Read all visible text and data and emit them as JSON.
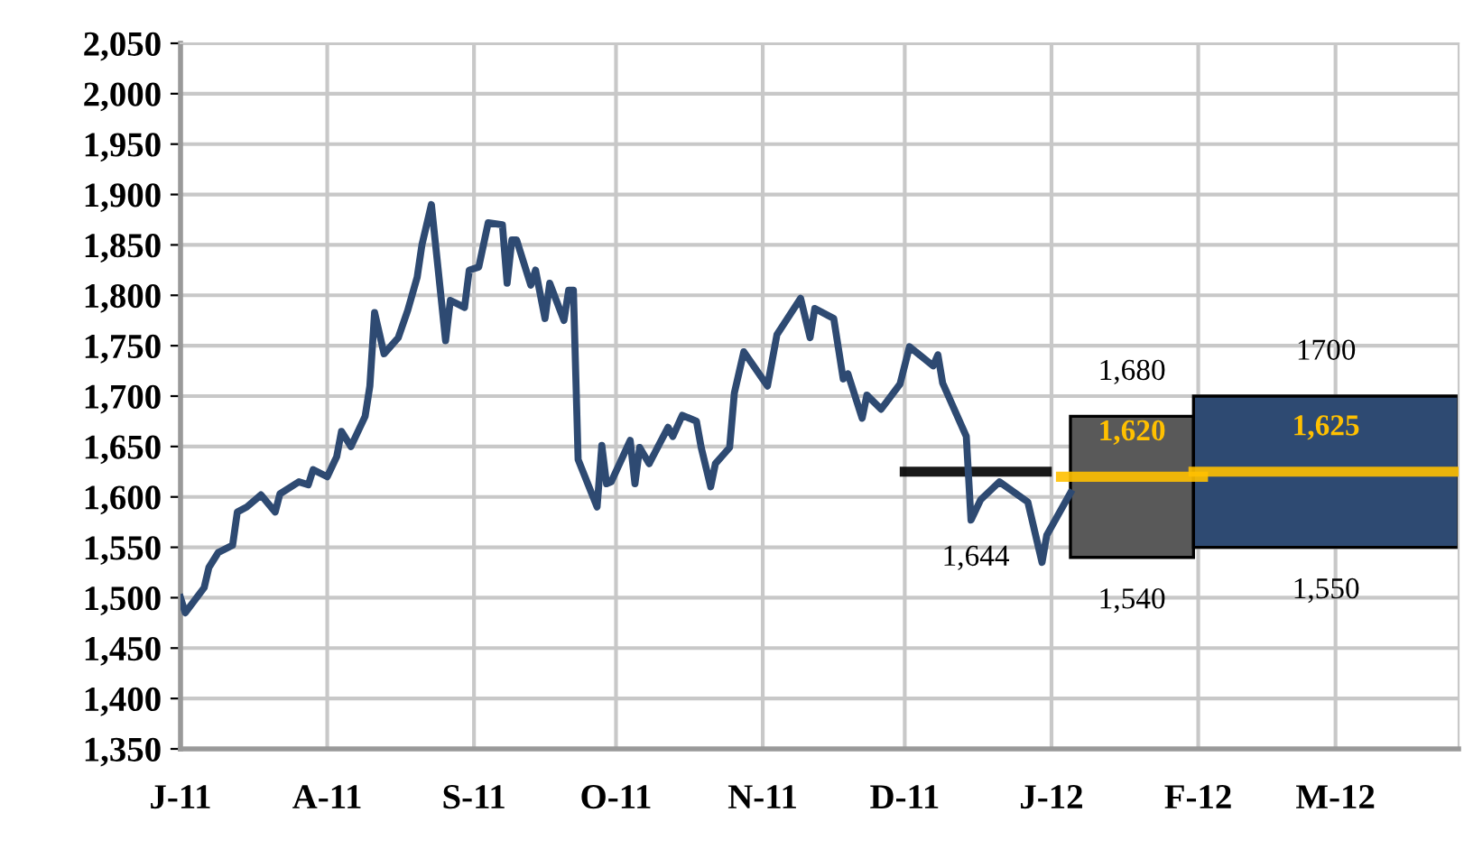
{
  "chart_data": {
    "type": "line",
    "xlim": [
      "2011-07-01",
      "2012-03-27"
    ],
    "ylim": [
      1350,
      2050
    ],
    "xticks": [
      {
        "value": "2011-07-01",
        "label": "J-11"
      },
      {
        "value": "2011-08-01",
        "label": "A-11"
      },
      {
        "value": "2011-09-01",
        "label": "S-11"
      },
      {
        "value": "2011-10-01",
        "label": "O-11"
      },
      {
        "value": "2011-11-01",
        "label": "N-11"
      },
      {
        "value": "2011-12-01",
        "label": "D-11"
      },
      {
        "value": "2012-01-01",
        "label": "J-12"
      },
      {
        "value": "2012-02-01",
        "label": "F-12"
      },
      {
        "value": "2012-03-01",
        "label": "M-12"
      }
    ],
    "yticks": [
      {
        "value": 1350,
        "label": "1,350"
      },
      {
        "value": 1400,
        "label": "1,400"
      },
      {
        "value": 1450,
        "label": "1,450"
      },
      {
        "value": 1500,
        "label": "1,500"
      },
      {
        "value": 1550,
        "label": "1,550"
      },
      {
        "value": 1600,
        "label": "1,600"
      },
      {
        "value": 1650,
        "label": "1,650"
      },
      {
        "value": 1700,
        "label": "1,700"
      },
      {
        "value": 1750,
        "label": "1,750"
      },
      {
        "value": 1800,
        "label": "1,800"
      },
      {
        "value": 1850,
        "label": "1,850"
      },
      {
        "value": 1900,
        "label": "1,900"
      },
      {
        "value": 1950,
        "label": "1,950"
      },
      {
        "value": 2000,
        "label": "2,000"
      },
      {
        "value": 2050,
        "label": "2,050"
      }
    ],
    "grid": true,
    "series": [
      {
        "type": "bar",
        "x": [
          "2012-01-18",
          "2012-02-28"
        ],
        "base": [
          1540,
          1550
        ],
        "values": [
          140,
          150
        ],
        "colors": [
          "#595959",
          "#2e4a72"
        ]
      },
      {
        "color": "#2e4a72",
        "x": [
          "2011-07-01",
          "2011-07-02",
          "2011-07-06",
          "2011-07-07",
          "2011-07-09",
          "2011-07-12",
          "2011-07-13",
          "2011-07-15",
          "2011-07-18",
          "2011-07-21",
          "2011-07-22",
          "2011-07-26",
          "2011-07-28",
          "2011-07-29",
          "2011-08-01",
          "2011-08-03",
          "2011-08-04",
          "2011-08-06",
          "2011-08-09",
          "2011-08-10",
          "2011-08-11",
          "2011-08-13",
          "2011-08-16",
          "2011-08-18",
          "2011-08-20",
          "2011-08-21",
          "2011-08-23",
          "2011-08-26",
          "2011-08-27",
          "2011-08-30",
          "2011-08-31",
          "2011-09-02",
          "2011-09-04",
          "2011-09-07",
          "2011-09-08",
          "2011-09-09",
          "2011-09-10",
          "2011-09-13",
          "2011-09-14",
          "2011-09-16",
          "2011-09-17",
          "2011-09-20",
          "2011-09-21",
          "2011-09-22",
          "2011-09-23",
          "2011-09-27",
          "2011-09-28",
          "2011-09-29",
          "2011-09-30",
          "2011-10-04",
          "2011-10-05",
          "2011-10-06",
          "2011-10-08",
          "2011-10-12",
          "2011-10-13",
          "2011-10-15",
          "2011-10-18",
          "2011-10-19",
          "2011-10-21",
          "2011-10-22",
          "2011-10-25",
          "2011-10-26",
          "2011-10-28",
          "2011-11-02",
          "2011-11-04",
          "2011-11-09",
          "2011-11-11",
          "2011-11-12",
          "2011-11-16",
          "2011-11-18",
          "2011-11-19",
          "2011-11-22",
          "2011-11-23",
          "2011-11-26",
          "2011-11-30",
          "2011-12-02",
          "2011-12-07",
          "2011-12-08",
          "2011-12-09",
          "2011-12-14",
          "2011-12-15",
          "2011-12-17",
          "2011-12-21",
          "2011-12-27",
          "2011-12-30",
          "2011-12-31",
          "2012-01-05"
        ],
        "values": [
          1500,
          1485,
          1510,
          1530,
          1545,
          1552,
          1585,
          1590,
          1602,
          1585,
          1603,
          1615,
          1612,
          1627,
          1620,
          1640,
          1665,
          1650,
          1680,
          1710,
          1783,
          1742,
          1758,
          1785,
          1818,
          1850,
          1890,
          1755,
          1795,
          1788,
          1825,
          1828,
          1872,
          1870,
          1812,
          1855,
          1855,
          1810,
          1825,
          1777,
          1812,
          1775,
          1805,
          1805,
          1637,
          1590,
          1651,
          1613,
          1615,
          1656,
          1613,
          1649,
          1633,
          1669,
          1660,
          1681,
          1675,
          1649,
          1610,
          1633,
          1649,
          1703,
          1744,
          1710,
          1761,
          1797,
          1758,
          1787,
          1777,
          1717,
          1722,
          1678,
          1701,
          1687,
          1712,
          1749,
          1730,
          1741,
          1713,
          1660,
          1577,
          1597,
          1615,
          1595,
          1535,
          1562,
          1604
        ]
      },
      {
        "name": "1,644",
        "color": "#000000",
        "x": [
          "2011-12-01",
          "2011-12-31"
        ],
        "values": [
          1625,
          1625
        ]
      },
      {
        "name": "1,620",
        "color": "#ffc000",
        "x": [
          "2012-01-03",
          "2012-02-02"
        ],
        "values": [
          1620,
          1620
        ]
      },
      {
        "name": "1,625",
        "color": "#ffc000",
        "x": [
          "2012-01-31",
          "2012-03-27"
        ],
        "values": [
          1625,
          1625
        ]
      }
    ],
    "annotations": [
      {
        "text": "1,680",
        "x": "2012-01-18",
        "y": 1680
      },
      {
        "text": "1,540",
        "x": "2012-01-18",
        "y": 1540
      },
      {
        "text": "1700",
        "x": "2012-02-28",
        "y": 1700
      },
      {
        "text": "1,550",
        "x": "2012-02-28",
        "y": 1550
      }
    ]
  }
}
